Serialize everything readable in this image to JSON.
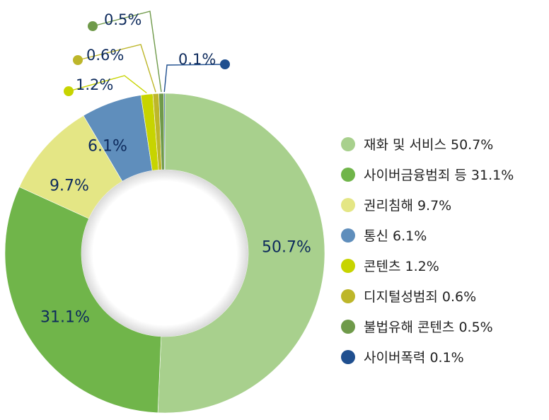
{
  "chart_data": {
    "type": "pie",
    "style": "donut",
    "legend_position": "right",
    "data_label_color": "#0d2a5c",
    "slices": [
      {
        "label": "재화 및 서비스",
        "value": 50.7,
        "value_label": "50.7%",
        "legend_text": "재화 및 서비스 50.7%",
        "color": "#a8d08d"
      },
      {
        "label": "사이버금융범죄 등",
        "value": 31.1,
        "value_label": "31.1%",
        "legend_text": "사이버금융범죄 등 31.1%",
        "color": "#70b54a"
      },
      {
        "label": "권리침해",
        "value": 9.7,
        "value_label": "9.7%",
        "legend_text": "권리침해 9.7%",
        "color": "#e4e685"
      },
      {
        "label": "통신",
        "value": 6.1,
        "value_label": "6.1%",
        "legend_text": "통신 6.1%",
        "color": "#5f8ebc"
      },
      {
        "label": "콘텐츠",
        "value": 1.2,
        "value_label": "1.2%",
        "legend_text": "콘텐츠 1.2%",
        "color": "#c7d400"
      },
      {
        "label": "디지털성범죄",
        "value": 0.6,
        "value_label": "0.6%",
        "legend_text": "디지털성범죄 0.6%",
        "color": "#bdb62a"
      },
      {
        "label": "불법유해 콘텐츠",
        "value": 0.5,
        "value_label": "0.5%",
        "legend_text": "불법유해 콘텐츠 0.5%",
        "color": "#6f9a4a"
      },
      {
        "label": "사이버폭력",
        "value": 0.1,
        "value_label": "0.1%",
        "legend_text": "사이버폭력 0.1%",
        "color": "#1f4f8f"
      }
    ]
  }
}
